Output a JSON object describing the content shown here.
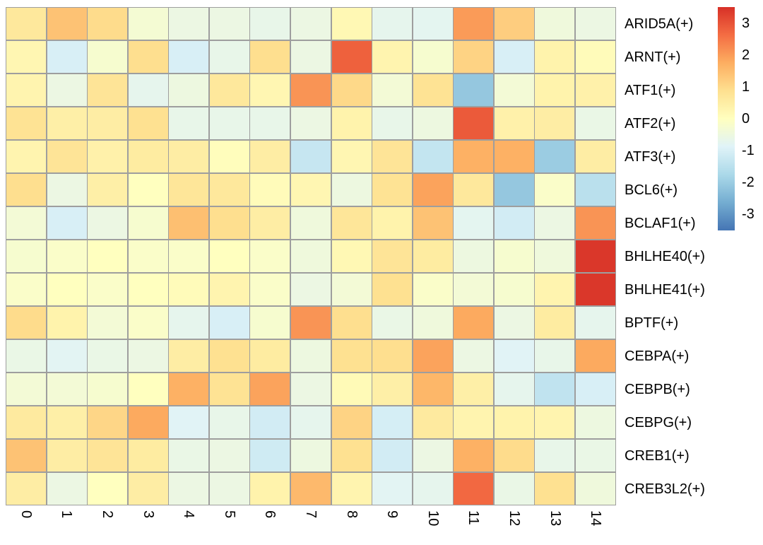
{
  "chart_data": {
    "type": "heatmap",
    "title": "",
    "xlabel": "",
    "ylabel": "",
    "rows": [
      "ARID5A(+)",
      "ARNT(+)",
      "ATF1(+)",
      "ATF2(+)",
      "ATF3(+)",
      "BCL6(+)",
      "BCLAF1(+)",
      "BHLHE40(+)",
      "BHLHE41(+)",
      "BPTF(+)",
      "CEBPA(+)",
      "CEBPB(+)",
      "CEBPG(+)",
      "CREB1(+)",
      "CREB3L2(+)"
    ],
    "columns": [
      "0",
      "1",
      "2",
      "3",
      "4",
      "5",
      "6",
      "7",
      "8",
      "9",
      "10",
      "11",
      "12",
      "13",
      "14"
    ],
    "values": [
      [
        0.65,
        1.4,
        0.95,
        -0.3,
        -0.55,
        -0.55,
        -0.65,
        -0.55,
        0.2,
        -0.7,
        -0.75,
        2.0,
        1.2,
        -0.45,
        -0.55
      ],
      [
        0.25,
        -1.0,
        -0.25,
        0.9,
        -1.0,
        -0.65,
        0.9,
        -0.55,
        2.8,
        0.3,
        -0.25,
        1.1,
        -1.0,
        0.35,
        0.1
      ],
      [
        0.3,
        -0.55,
        0.75,
        -0.7,
        -0.5,
        0.65,
        0.25,
        2.1,
        1.0,
        -0.35,
        0.8,
        -2.1,
        -0.35,
        0.35,
        0.4
      ],
      [
        0.8,
        0.45,
        0.5,
        0.85,
        -0.65,
        -0.65,
        -0.65,
        -0.55,
        0.35,
        -0.65,
        -0.5,
        2.9,
        0.4,
        0.5,
        -0.6
      ],
      [
        0.3,
        0.75,
        0.4,
        0.55,
        0.5,
        0.05,
        0.5,
        -1.3,
        0.25,
        0.75,
        -1.35,
        1.7,
        1.7,
        -2.0,
        0.5
      ],
      [
        0.9,
        -0.55,
        0.45,
        0.0,
        0.7,
        0.65,
        0.1,
        0.25,
        -0.5,
        0.8,
        1.9,
        0.65,
        -2.1,
        -0.15,
        -1.5
      ],
      [
        -0.35,
        -1.0,
        -0.55,
        -0.25,
        1.45,
        0.9,
        0.5,
        -0.45,
        0.7,
        0.35,
        1.4,
        -0.75,
        -1.1,
        -0.55,
        2.1
      ],
      [
        -0.25,
        -0.15,
        0.0,
        -0.15,
        -0.15,
        0.0,
        -0.15,
        -0.45,
        0.2,
        0.75,
        0.55,
        -0.5,
        -0.25,
        -0.45,
        3.4
      ],
      [
        -0.15,
        0.0,
        -0.15,
        0.0,
        0.1,
        0.3,
        -0.15,
        -0.55,
        -0.35,
        0.85,
        -0.15,
        -0.35,
        -0.25,
        0.3,
        3.4
      ],
      [
        0.95,
        0.35,
        -0.35,
        -0.15,
        -0.7,
        -1.0,
        -0.25,
        2.1,
        0.9,
        -0.6,
        -0.45,
        1.8,
        -0.55,
        0.55,
        -0.7
      ],
      [
        -0.6,
        -0.8,
        -0.6,
        -0.55,
        0.5,
        0.85,
        0.55,
        -0.5,
        0.85,
        0.9,
        1.9,
        -0.55,
        -0.85,
        -0.65,
        1.8
      ],
      [
        -0.35,
        -0.35,
        -0.25,
        0.0,
        1.7,
        0.8,
        1.9,
        -0.55,
        0.15,
        0.45,
        1.6,
        0.45,
        -0.7,
        -1.4,
        -1.0
      ],
      [
        0.6,
        0.45,
        1.05,
        1.8,
        -0.85,
        -0.65,
        -1.1,
        -0.7,
        1.1,
        -1.05,
        0.6,
        0.3,
        0.35,
        0.3,
        -0.5
      ],
      [
        1.4,
        0.5,
        0.75,
        0.55,
        -0.6,
        -0.55,
        -1.15,
        -0.5,
        0.85,
        -1.1,
        -0.55,
        1.7,
        0.95,
        -0.65,
        -0.6
      ],
      [
        0.5,
        -0.55,
        0.0,
        0.5,
        -0.55,
        -0.55,
        0.35,
        1.55,
        0.3,
        -0.8,
        -0.7,
        2.7,
        -0.6,
        0.85,
        -0.45
      ]
    ],
    "colorbar": {
      "tick_labels": [
        "3",
        "2",
        "1",
        "0",
        "-1",
        "-2",
        "-3"
      ],
      "tick_values": [
        3,
        2,
        1,
        0,
        -1,
        -2,
        -3
      ],
      "vmin": -3.5,
      "vmax": 3.5
    },
    "colors": {
      "palette_low_to_high": [
        "#4575b4",
        "#74add1",
        "#abd9e9",
        "#e0f3f8",
        "#ffffbf",
        "#fee090",
        "#fdae61",
        "#f46d43",
        "#d73027"
      ],
      "grid_line": "#9e9e9e",
      "background": "#ffffff",
      "label_text": "#000000"
    },
    "legend_position": "right",
    "grid": true,
    "x_tick_rotation_deg": 90
  }
}
